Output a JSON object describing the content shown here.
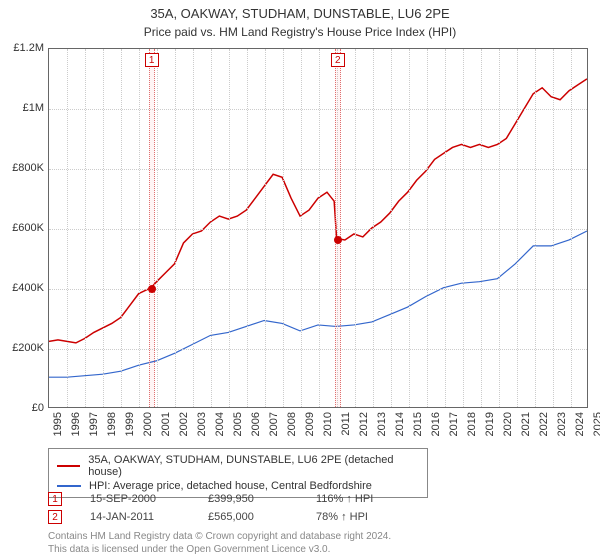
{
  "title": "35A, OAKWAY, STUDHAM, DUNSTABLE, LU6 2PE",
  "subtitle": "Price paid vs. HM Land Registry's House Price Index (HPI)",
  "chart": {
    "type": "line",
    "background_color": "#ffffff",
    "border_color": "#666666",
    "grid_color": "#cccccc",
    "xlim": [
      1995,
      2025
    ],
    "ylim": [
      0,
      1200000
    ],
    "ytick_step": 200000,
    "yticks": [
      {
        "v": 0,
        "label": "£0"
      },
      {
        "v": 200000,
        "label": "£200K"
      },
      {
        "v": 400000,
        "label": "£400K"
      },
      {
        "v": 600000,
        "label": "£600K"
      },
      {
        "v": 800000,
        "label": "£800K"
      },
      {
        "v": 1000000,
        "label": "£1M"
      },
      {
        "v": 1200000,
        "label": "£1.2M"
      }
    ],
    "xticks": [
      1995,
      1996,
      1997,
      1998,
      1999,
      2000,
      2001,
      2002,
      2003,
      2004,
      2005,
      2006,
      2007,
      2008,
      2009,
      2010,
      2011,
      2012,
      2013,
      2014,
      2015,
      2016,
      2017,
      2018,
      2019,
      2020,
      2021,
      2022,
      2023,
      2024,
      2025
    ],
    "series": [
      {
        "name": "35A, OAKWAY, STUDHAM, DUNSTABLE, LU6 2PE (detached house)",
        "color": "#cc0000",
        "width": 1.5,
        "points": [
          [
            1995,
            220000
          ],
          [
            1995.5,
            225000
          ],
          [
            1996,
            220000
          ],
          [
            1996.5,
            215000
          ],
          [
            1997,
            230000
          ],
          [
            1997.5,
            250000
          ],
          [
            1998,
            265000
          ],
          [
            1998.5,
            280000
          ],
          [
            1999,
            300000
          ],
          [
            1999.5,
            340000
          ],
          [
            2000,
            380000
          ],
          [
            2000.7,
            399950
          ],
          [
            2001,
            420000
          ],
          [
            2001.5,
            450000
          ],
          [
            2002,
            480000
          ],
          [
            2002.5,
            550000
          ],
          [
            2003,
            580000
          ],
          [
            2003.5,
            590000
          ],
          [
            2004,
            620000
          ],
          [
            2004.5,
            640000
          ],
          [
            2005,
            630000
          ],
          [
            2005.5,
            640000
          ],
          [
            2006,
            660000
          ],
          [
            2006.5,
            700000
          ],
          [
            2007,
            740000
          ],
          [
            2007.5,
            780000
          ],
          [
            2008,
            770000
          ],
          [
            2008.5,
            700000
          ],
          [
            2009,
            640000
          ],
          [
            2009.5,
            660000
          ],
          [
            2010,
            700000
          ],
          [
            2010.5,
            720000
          ],
          [
            2010.9,
            690000
          ],
          [
            2011.04,
            565000
          ],
          [
            2011.5,
            560000
          ],
          [
            2012,
            580000
          ],
          [
            2012.5,
            570000
          ],
          [
            2013,
            600000
          ],
          [
            2013.5,
            620000
          ],
          [
            2014,
            650000
          ],
          [
            2014.5,
            690000
          ],
          [
            2015,
            720000
          ],
          [
            2015.5,
            760000
          ],
          [
            2016,
            790000
          ],
          [
            2016.5,
            830000
          ],
          [
            2017,
            850000
          ],
          [
            2017.5,
            870000
          ],
          [
            2018,
            880000
          ],
          [
            2018.5,
            870000
          ],
          [
            2019,
            880000
          ],
          [
            2019.5,
            870000
          ],
          [
            2020,
            880000
          ],
          [
            2020.5,
            900000
          ],
          [
            2021,
            950000
          ],
          [
            2021.5,
            1000000
          ],
          [
            2022,
            1050000
          ],
          [
            2022.5,
            1070000
          ],
          [
            2023,
            1040000
          ],
          [
            2023.5,
            1030000
          ],
          [
            2024,
            1060000
          ],
          [
            2024.5,
            1080000
          ],
          [
            2025,
            1100000
          ]
        ]
      },
      {
        "name": "HPI: Average price, detached house, Central Bedfordshire",
        "color": "#3366cc",
        "width": 1.2,
        "points": [
          [
            1995,
            100000
          ],
          [
            1996,
            100000
          ],
          [
            1997,
            105000
          ],
          [
            1998,
            110000
          ],
          [
            1999,
            120000
          ],
          [
            2000,
            140000
          ],
          [
            2001,
            155000
          ],
          [
            2002,
            180000
          ],
          [
            2003,
            210000
          ],
          [
            2004,
            240000
          ],
          [
            2005,
            250000
          ],
          [
            2006,
            270000
          ],
          [
            2007,
            290000
          ],
          [
            2008,
            280000
          ],
          [
            2009,
            255000
          ],
          [
            2010,
            275000
          ],
          [
            2011,
            270000
          ],
          [
            2012,
            275000
          ],
          [
            2013,
            285000
          ],
          [
            2014,
            310000
          ],
          [
            2015,
            335000
          ],
          [
            2016,
            370000
          ],
          [
            2017,
            400000
          ],
          [
            2018,
            415000
          ],
          [
            2019,
            420000
          ],
          [
            2020,
            430000
          ],
          [
            2021,
            480000
          ],
          [
            2022,
            540000
          ],
          [
            2023,
            540000
          ],
          [
            2024,
            560000
          ],
          [
            2025,
            590000
          ]
        ]
      }
    ],
    "markers": [
      {
        "n": "1",
        "x": 2000.7,
        "y": 399950
      },
      {
        "n": "2",
        "x": 2011.04,
        "y": 565000
      }
    ]
  },
  "legend": {
    "items": [
      {
        "color": "#cc0000",
        "label": "35A, OAKWAY, STUDHAM, DUNSTABLE, LU6 2PE (detached house)"
      },
      {
        "color": "#3366cc",
        "label": "HPI: Average price, detached house, Central Bedfordshire"
      }
    ]
  },
  "transactions": [
    {
      "n": "1",
      "date": "15-SEP-2000",
      "price": "£399,950",
      "hpi": "116% ↑ HPI"
    },
    {
      "n": "2",
      "date": "14-JAN-2011",
      "price": "£565,000",
      "hpi": "78% ↑ HPI"
    }
  ],
  "footer": {
    "line1": "Contains HM Land Registry data © Crown copyright and database right 2024.",
    "line2": "This data is licensed under the Open Government Licence v3.0."
  }
}
